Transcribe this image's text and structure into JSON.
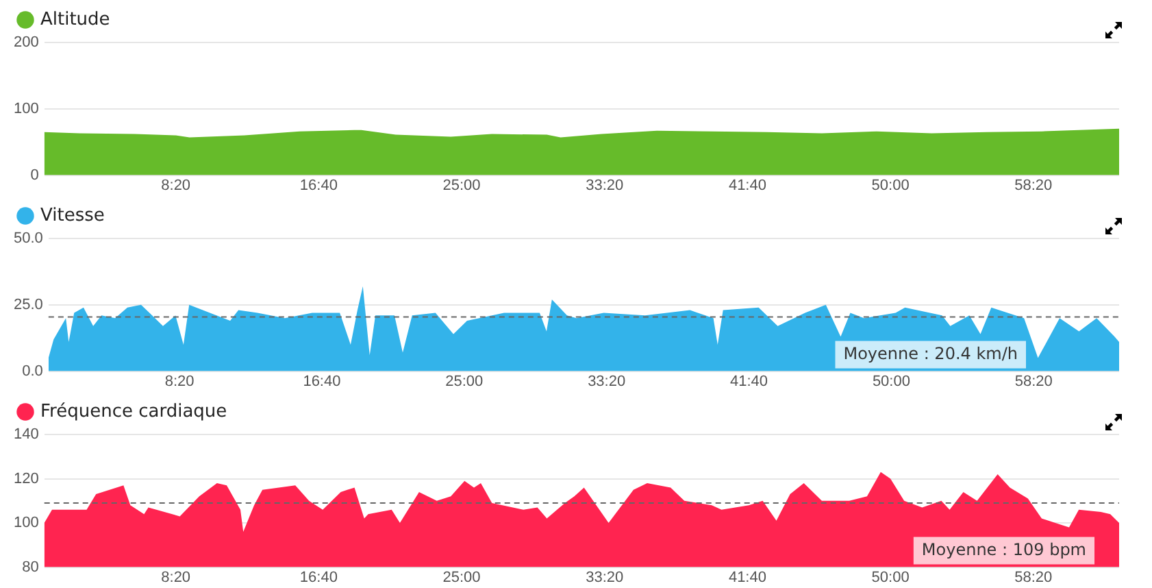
{
  "chart_data": [
    {
      "type": "area",
      "x": [
        40,
        163,
        356,
        500,
        548,
        740,
        933,
        1125,
        1149,
        1269,
        1462,
        1606,
        1798,
        1846,
        1990,
        2183,
        2375,
        2567,
        2760,
        2952,
        3144,
        3337,
        3529,
        3800
      ],
      "series": [
        {
          "name": "Altitude",
          "color": "#66bb2a",
          "values": [
            65,
            63,
            62,
            60,
            57,
            60,
            66,
            68,
            68,
            61,
            58,
            62,
            61,
            57,
            62,
            67,
            66,
            65,
            63,
            66,
            63,
            65,
            66,
            70
          ]
        }
      ],
      "xlim": [
        40,
        3800
      ],
      "xticks": [
        {
          "value": 500,
          "label": "8:20"
        },
        {
          "value": 1000,
          "label": "16:40"
        },
        {
          "value": 1500,
          "label": "25:00"
        },
        {
          "value": 2000,
          "label": "33:20"
        },
        {
          "value": 2500,
          "label": "41:40"
        },
        {
          "value": 3000,
          "label": "50:00"
        },
        {
          "value": 3500,
          "label": "58:20"
        }
      ],
      "ylim": [
        0,
        200
      ],
      "yticks": [
        0,
        100,
        200
      ],
      "grid": "y",
      "legend": "top left"
    },
    {
      "type": "area",
      "x": [
        40,
        58,
        101,
        111,
        130,
        163,
        197,
        226,
        274,
        317,
        365,
        404,
        442,
        486,
        514,
        534,
        582,
        630,
        678,
        707,
        774,
        870,
        966,
        1063,
        1101,
        1125,
        1144,
        1168,
        1188,
        1255,
        1284,
        1317,
        1399,
        1462,
        1510,
        1640,
        1765,
        1789,
        1808,
        1861,
        1894,
        1990,
        2135,
        2293,
        2375,
        2390,
        2409,
        2534,
        2601,
        2697,
        2770,
        2822,
        2856,
        2904,
        3015,
        3048,
        3178,
        3207,
        3274,
        3313,
        3351,
        3466,
        3515,
        3591,
        3659,
        3721,
        3784,
        3800
      ],
      "series": [
        {
          "name": "Vitesse",
          "color": "#33b3ea",
          "values": [
            5,
            12,
            20,
            11,
            22,
            24,
            17,
            21,
            20,
            24,
            25,
            21,
            17,
            21,
            10,
            25,
            23,
            21,
            19,
            23,
            22,
            20,
            22,
            22,
            10,
            23,
            32,
            6,
            21,
            21,
            7,
            21,
            22,
            14,
            19,
            22,
            22,
            15,
            27,
            21,
            20,
            22,
            21,
            23,
            20,
            10,
            23,
            24,
            17,
            22,
            25,
            13,
            22,
            20,
            22,
            24,
            21,
            17,
            21,
            14,
            24,
            20,
            5,
            20,
            15,
            20,
            13,
            11
          ]
        }
      ],
      "xlim": [
        40,
        3800
      ],
      "xticks": [
        {
          "value": 500,
          "label": "8:20"
        },
        {
          "value": 1000,
          "label": "16:40"
        },
        {
          "value": 1500,
          "label": "25:00"
        },
        {
          "value": 2000,
          "label": "33:20"
        },
        {
          "value": 2500,
          "label": "41:40"
        },
        {
          "value": 3000,
          "label": "50:00"
        },
        {
          "value": 3500,
          "label": "58:20"
        }
      ],
      "ylim": [
        0,
        50
      ],
      "yticks": [
        {
          "value": 0,
          "label": "0.0"
        },
        {
          "value": 25,
          "label": "25.0"
        },
        {
          "value": 50,
          "label": "50.0"
        }
      ],
      "grid": "y",
      "legend": "top left",
      "ref_lines": [
        {
          "axis": "y",
          "value": 20.4,
          "label": "Moyenne : 20.4 km/h",
          "color": "#666666",
          "line_style": "dashed"
        }
      ]
    },
    {
      "type": "area",
      "x": [
        40,
        67,
        188,
        221,
        317,
        341,
        389,
        404,
        514,
        582,
        644,
        678,
        726,
        736,
        774,
        803,
        918,
        966,
        1014,
        1077,
        1125,
        1159,
        1173,
        1255,
        1284,
        1351,
        1413,
        1462,
        1510,
        1543,
        1567,
        1606,
        1716,
        1765,
        1798,
        1861,
        1894,
        1928,
        2014,
        2101,
        2149,
        2231,
        2279,
        2375,
        2409,
        2505,
        2553,
        2601,
        2649,
        2697,
        2760,
        2856,
        2918,
        2966,
        3000,
        3048,
        3111,
        3178,
        3207,
        3255,
        3303,
        3375,
        3418,
        3481,
        3529,
        3625,
        3659,
        3736,
        3769,
        3800
      ],
      "series": [
        {
          "name": "Fréquence cardiaque",
          "color": "#ff2450",
          "values": [
            100,
            106,
            106,
            113,
            117,
            108,
            104,
            107,
            103,
            112,
            118,
            117,
            106,
            96,
            108,
            115,
            117,
            110,
            106,
            114,
            116,
            102,
            104,
            106,
            100,
            114,
            110,
            112,
            119,
            116,
            118,
            109,
            106,
            107,
            102,
            109,
            112,
            116,
            100,
            115,
            118,
            116,
            110,
            108,
            106,
            108,
            110,
            101,
            113,
            118,
            110,
            110,
            112,
            123,
            120,
            110,
            107,
            110,
            106,
            114,
            110,
            122,
            116,
            111,
            102,
            98,
            106,
            105,
            104,
            100
          ]
        }
      ],
      "xlim": [
        40,
        3800
      ],
      "xticks": [
        {
          "value": 500,
          "label": "8:20"
        },
        {
          "value": 1000,
          "label": "16:40"
        },
        {
          "value": 1500,
          "label": "25:00"
        },
        {
          "value": 2000,
          "label": "33:20"
        },
        {
          "value": 2500,
          "label": "41:40"
        },
        {
          "value": 3000,
          "label": "50:00"
        },
        {
          "value": 3500,
          "label": "58:20"
        }
      ],
      "ylim": [
        80,
        140
      ],
      "yticks": [
        80,
        100,
        120,
        140
      ],
      "grid": "y",
      "legend": "top left",
      "ref_lines": [
        {
          "axis": "y",
          "value": 109,
          "label": "Moyenne : 109 bpm",
          "color": "#666666",
          "line_style": "dashed"
        }
      ]
    }
  ]
}
